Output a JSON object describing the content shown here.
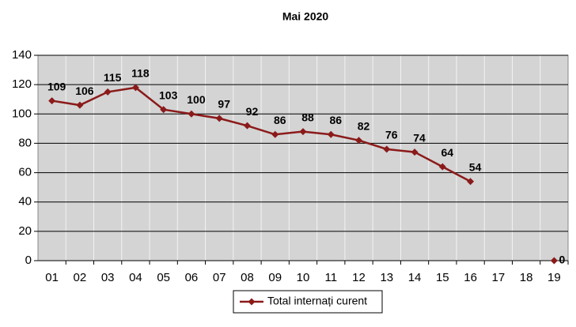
{
  "chart_data": {
    "type": "line",
    "title": "Mai 2020",
    "categories": [
      "01",
      "02",
      "03",
      "04",
      "05",
      "06",
      "07",
      "08",
      "09",
      "10",
      "11",
      "12",
      "13",
      "14",
      "15",
      "16",
      "17",
      "18",
      "19"
    ],
    "series": [
      {
        "name": "Total internați curent",
        "color": "#8b1a1a",
        "values": [
          109,
          106,
          115,
          118,
          103,
          100,
          97,
          92,
          86,
          88,
          86,
          82,
          76,
          74,
          64,
          54,
          null,
          null,
          0
        ]
      }
    ],
    "ylim": [
      0,
      140
    ],
    "yticks": [
      0,
      20,
      40,
      60,
      80,
      100,
      120,
      140
    ],
    "grid": true,
    "legend": "bottom"
  }
}
